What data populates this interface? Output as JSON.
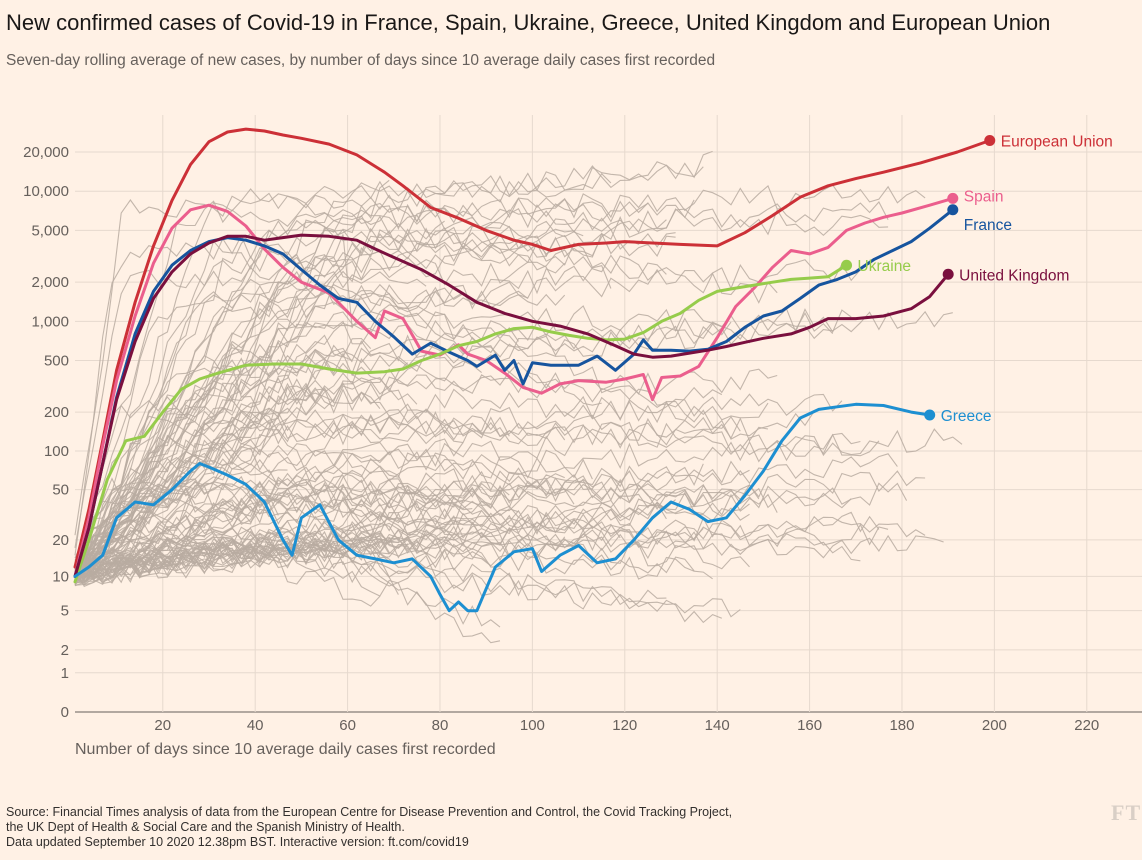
{
  "title": "New confirmed cases of Covid-19 in France, Spain, Ukraine, Greece, United Kingdom and European Union",
  "subtitle": "Seven-day rolling average of new cases, by number of days since 10 average daily cases first recorded",
  "source": {
    "line1": "Source: Financial Times analysis of data from the European Centre for Disease Prevention and Control, the Covid Tracking Project,",
    "line2": "the UK Dept of Health & Social Care and the Spanish Ministry of Health.",
    "line3": "Data updated September 10 2020 12.38pm BST. Interactive version: ft.com/covid19"
  },
  "logo_text": "FT",
  "colors": {
    "background": "#fff1e5",
    "grid": "#e6d9ce",
    "other_countries": "#b8aca1"
  },
  "chart_data": {
    "type": "line",
    "xlabel": "Number of days since 10 average daily cases first recorded",
    "ylabel": "",
    "yscale": "log",
    "xlim": [
      0,
      230
    ],
    "ylim": [
      0,
      40000
    ],
    "x_ticks": [
      "20",
      "40",
      "60",
      "80",
      "100",
      "120",
      "140",
      "160",
      "180",
      "200",
      "220"
    ],
    "y_ticks": [
      "20,000",
      "10,000",
      "5,000",
      "2,000",
      "1,000",
      "500",
      "200",
      "100",
      "50",
      "20",
      "10",
      "5",
      "2",
      "1",
      "0"
    ],
    "grid": true,
    "legend": "direct labels at line ends",
    "series": [
      {
        "name": "European Union",
        "color": "#cc3037",
        "highlight": true,
        "points": [
          [
            1,
            12
          ],
          [
            4,
            35
          ],
          [
            7,
            120
          ],
          [
            10,
            420
          ],
          [
            14,
            1400
          ],
          [
            18,
            3800
          ],
          [
            22,
            8500
          ],
          [
            26,
            16000
          ],
          [
            30,
            24000
          ],
          [
            34,
            28500
          ],
          [
            38,
            30000
          ],
          [
            42,
            29000
          ],
          [
            46,
            27000
          ],
          [
            50,
            25500
          ],
          [
            56,
            23000
          ],
          [
            62,
            19000
          ],
          [
            68,
            14000
          ],
          [
            72,
            11000
          ],
          [
            78,
            7500
          ],
          [
            84,
            6200
          ],
          [
            90,
            5000
          ],
          [
            96,
            4200
          ],
          [
            100,
            3900
          ],
          [
            104,
            3500
          ],
          [
            110,
            3900
          ],
          [
            116,
            4000
          ],
          [
            120,
            4100
          ],
          [
            126,
            4000
          ],
          [
            132,
            3900
          ],
          [
            140,
            3800
          ],
          [
            146,
            4800
          ],
          [
            152,
            6500
          ],
          [
            158,
            9000
          ],
          [
            164,
            11000
          ],
          [
            170,
            12500
          ],
          [
            176,
            14000
          ],
          [
            184,
            16500
          ],
          [
            192,
            20000
          ],
          [
            199,
            24500
          ]
        ]
      },
      {
        "name": "Spain",
        "color": "#eb5e8d",
        "highlight": true,
        "points": [
          [
            1,
            10
          ],
          [
            4,
            30
          ],
          [
            7,
            110
          ],
          [
            10,
            350
          ],
          [
            14,
            1100
          ],
          [
            18,
            2800
          ],
          [
            22,
            5200
          ],
          [
            26,
            7200
          ],
          [
            30,
            7800
          ],
          [
            34,
            7000
          ],
          [
            38,
            5400
          ],
          [
            42,
            3600
          ],
          [
            46,
            2600
          ],
          [
            50,
            2000
          ],
          [
            56,
            1650
          ],
          [
            62,
            1000
          ],
          [
            66,
            750
          ],
          [
            68,
            1200
          ],
          [
            72,
            1050
          ],
          [
            76,
            590
          ],
          [
            80,
            550
          ],
          [
            84,
            660
          ],
          [
            86,
            560
          ],
          [
            90,
            500
          ],
          [
            94,
            400
          ],
          [
            98,
            310
          ],
          [
            102,
            280
          ],
          [
            106,
            330
          ],
          [
            110,
            350
          ],
          [
            116,
            340
          ],
          [
            120,
            360
          ],
          [
            124,
            390
          ],
          [
            126,
            250
          ],
          [
            128,
            370
          ],
          [
            132,
            380
          ],
          [
            136,
            450
          ],
          [
            140,
            750
          ],
          [
            144,
            1300
          ],
          [
            148,
            1800
          ],
          [
            152,
            2600
          ],
          [
            156,
            3500
          ],
          [
            160,
            3300
          ],
          [
            164,
            3700
          ],
          [
            168,
            5000
          ],
          [
            172,
            5700
          ],
          [
            176,
            6300
          ],
          [
            180,
            6800
          ],
          [
            186,
            7800
          ],
          [
            191,
            8800
          ]
        ]
      },
      {
        "name": "France",
        "color": "#16549e",
        "highlight": true,
        "points": [
          [
            1,
            10
          ],
          [
            4,
            25
          ],
          [
            7,
            80
          ],
          [
            10,
            260
          ],
          [
            14,
            800
          ],
          [
            18,
            1700
          ],
          [
            22,
            2700
          ],
          [
            26,
            3500
          ],
          [
            30,
            4100
          ],
          [
            34,
            4400
          ],
          [
            38,
            4200
          ],
          [
            42,
            3800
          ],
          [
            46,
            3300
          ],
          [
            50,
            2500
          ],
          [
            54,
            1900
          ],
          [
            58,
            1500
          ],
          [
            62,
            1400
          ],
          [
            66,
            1000
          ],
          [
            70,
            760
          ],
          [
            74,
            560
          ],
          [
            78,
            680
          ],
          [
            82,
            580
          ],
          [
            86,
            500
          ],
          [
            88,
            450
          ],
          [
            92,
            550
          ],
          [
            94,
            420
          ],
          [
            96,
            500
          ],
          [
            98,
            330
          ],
          [
            100,
            480
          ],
          [
            104,
            460
          ],
          [
            110,
            460
          ],
          [
            114,
            540
          ],
          [
            118,
            420
          ],
          [
            122,
            560
          ],
          [
            124,
            720
          ],
          [
            126,
            600
          ],
          [
            130,
            600
          ],
          [
            134,
            590
          ],
          [
            138,
            610
          ],
          [
            142,
            700
          ],
          [
            146,
            900
          ],
          [
            150,
            1100
          ],
          [
            154,
            1200
          ],
          [
            158,
            1500
          ],
          [
            162,
            1900
          ],
          [
            166,
            2100
          ],
          [
            170,
            2400
          ],
          [
            174,
            3000
          ],
          [
            178,
            3500
          ],
          [
            182,
            4100
          ],
          [
            186,
            5200
          ],
          [
            191,
            7200
          ]
        ]
      },
      {
        "name": "Ukraine",
        "color": "#96cc4b",
        "highlight": true,
        "points": [
          [
            1,
            9
          ],
          [
            4,
            20
          ],
          [
            8,
            60
          ],
          [
            12,
            120
          ],
          [
            16,
            130
          ],
          [
            20,
            200
          ],
          [
            24,
            300
          ],
          [
            28,
            360
          ],
          [
            32,
            400
          ],
          [
            38,
            460
          ],
          [
            44,
            470
          ],
          [
            50,
            470
          ],
          [
            56,
            430
          ],
          [
            62,
            400
          ],
          [
            68,
            410
          ],
          [
            72,
            430
          ],
          [
            76,
            500
          ],
          [
            80,
            560
          ],
          [
            84,
            650
          ],
          [
            88,
            700
          ],
          [
            92,
            800
          ],
          [
            96,
            880
          ],
          [
            100,
            900
          ],
          [
            104,
            830
          ],
          [
            108,
            780
          ],
          [
            112,
            740
          ],
          [
            116,
            720
          ],
          [
            120,
            730
          ],
          [
            124,
            820
          ],
          [
            128,
            1000
          ],
          [
            132,
            1150
          ],
          [
            136,
            1450
          ],
          [
            140,
            1700
          ],
          [
            144,
            1800
          ],
          [
            148,
            1900
          ],
          [
            152,
            2000
          ],
          [
            156,
            2100
          ],
          [
            160,
            2150
          ],
          [
            164,
            2200
          ],
          [
            168,
            2700
          ]
        ]
      },
      {
        "name": "United Kingdom",
        "color": "#7a0f3e",
        "highlight": true,
        "points": [
          [
            1,
            10
          ],
          [
            4,
            25
          ],
          [
            7,
            80
          ],
          [
            10,
            250
          ],
          [
            14,
            700
          ],
          [
            18,
            1500
          ],
          [
            22,
            2400
          ],
          [
            26,
            3300
          ],
          [
            30,
            4000
          ],
          [
            34,
            4500
          ],
          [
            38,
            4500
          ],
          [
            42,
            4200
          ],
          [
            46,
            4400
          ],
          [
            50,
            4600
          ],
          [
            56,
            4500
          ],
          [
            62,
            4200
          ],
          [
            66,
            3600
          ],
          [
            70,
            3100
          ],
          [
            76,
            2500
          ],
          [
            82,
            1900
          ],
          [
            88,
            1400
          ],
          [
            94,
            1150
          ],
          [
            100,
            1000
          ],
          [
            106,
            920
          ],
          [
            112,
            800
          ],
          [
            118,
            650
          ],
          [
            122,
            560
          ],
          [
            126,
            530
          ],
          [
            130,
            540
          ],
          [
            134,
            570
          ],
          [
            138,
            600
          ],
          [
            142,
            640
          ],
          [
            146,
            690
          ],
          [
            150,
            740
          ],
          [
            156,
            800
          ],
          [
            160,
            900
          ],
          [
            164,
            1050
          ],
          [
            170,
            1050
          ],
          [
            176,
            1100
          ],
          [
            182,
            1250
          ],
          [
            186,
            1550
          ],
          [
            190,
            2300
          ]
        ]
      },
      {
        "name": "Greece",
        "color": "#1d8fd1",
        "highlight": true,
        "points": [
          [
            1,
            10
          ],
          [
            4,
            12
          ],
          [
            7,
            15
          ],
          [
            10,
            30
          ],
          [
            14,
            40
          ],
          [
            18,
            38
          ],
          [
            22,
            50
          ],
          [
            26,
            70
          ],
          [
            28,
            80
          ],
          [
            30,
            75
          ],
          [
            34,
            65
          ],
          [
            38,
            55
          ],
          [
            42,
            40
          ],
          [
            46,
            20
          ],
          [
            48,
            15
          ],
          [
            50,
            30
          ],
          [
            54,
            38
          ],
          [
            58,
            20
          ],
          [
            62,
            15
          ],
          [
            66,
            14
          ],
          [
            70,
            13
          ],
          [
            74,
            14
          ],
          [
            78,
            10
          ],
          [
            80,
            7
          ],
          [
            82,
            5
          ],
          [
            84,
            6
          ],
          [
            86,
            5
          ],
          [
            88,
            5
          ],
          [
            92,
            12
          ],
          [
            96,
            16
          ],
          [
            100,
            17
          ],
          [
            102,
            11
          ],
          [
            106,
            15
          ],
          [
            110,
            18
          ],
          [
            114,
            13
          ],
          [
            118,
            14
          ],
          [
            122,
            20
          ],
          [
            126,
            30
          ],
          [
            130,
            40
          ],
          [
            134,
            35
          ],
          [
            138,
            28
          ],
          [
            142,
            30
          ],
          [
            146,
            45
          ],
          [
            150,
            70
          ],
          [
            154,
            120
          ],
          [
            158,
            180
          ],
          [
            162,
            210
          ],
          [
            166,
            220
          ],
          [
            170,
            230
          ],
          [
            176,
            225
          ],
          [
            182,
            200
          ],
          [
            186,
            190
          ]
        ]
      }
    ]
  }
}
